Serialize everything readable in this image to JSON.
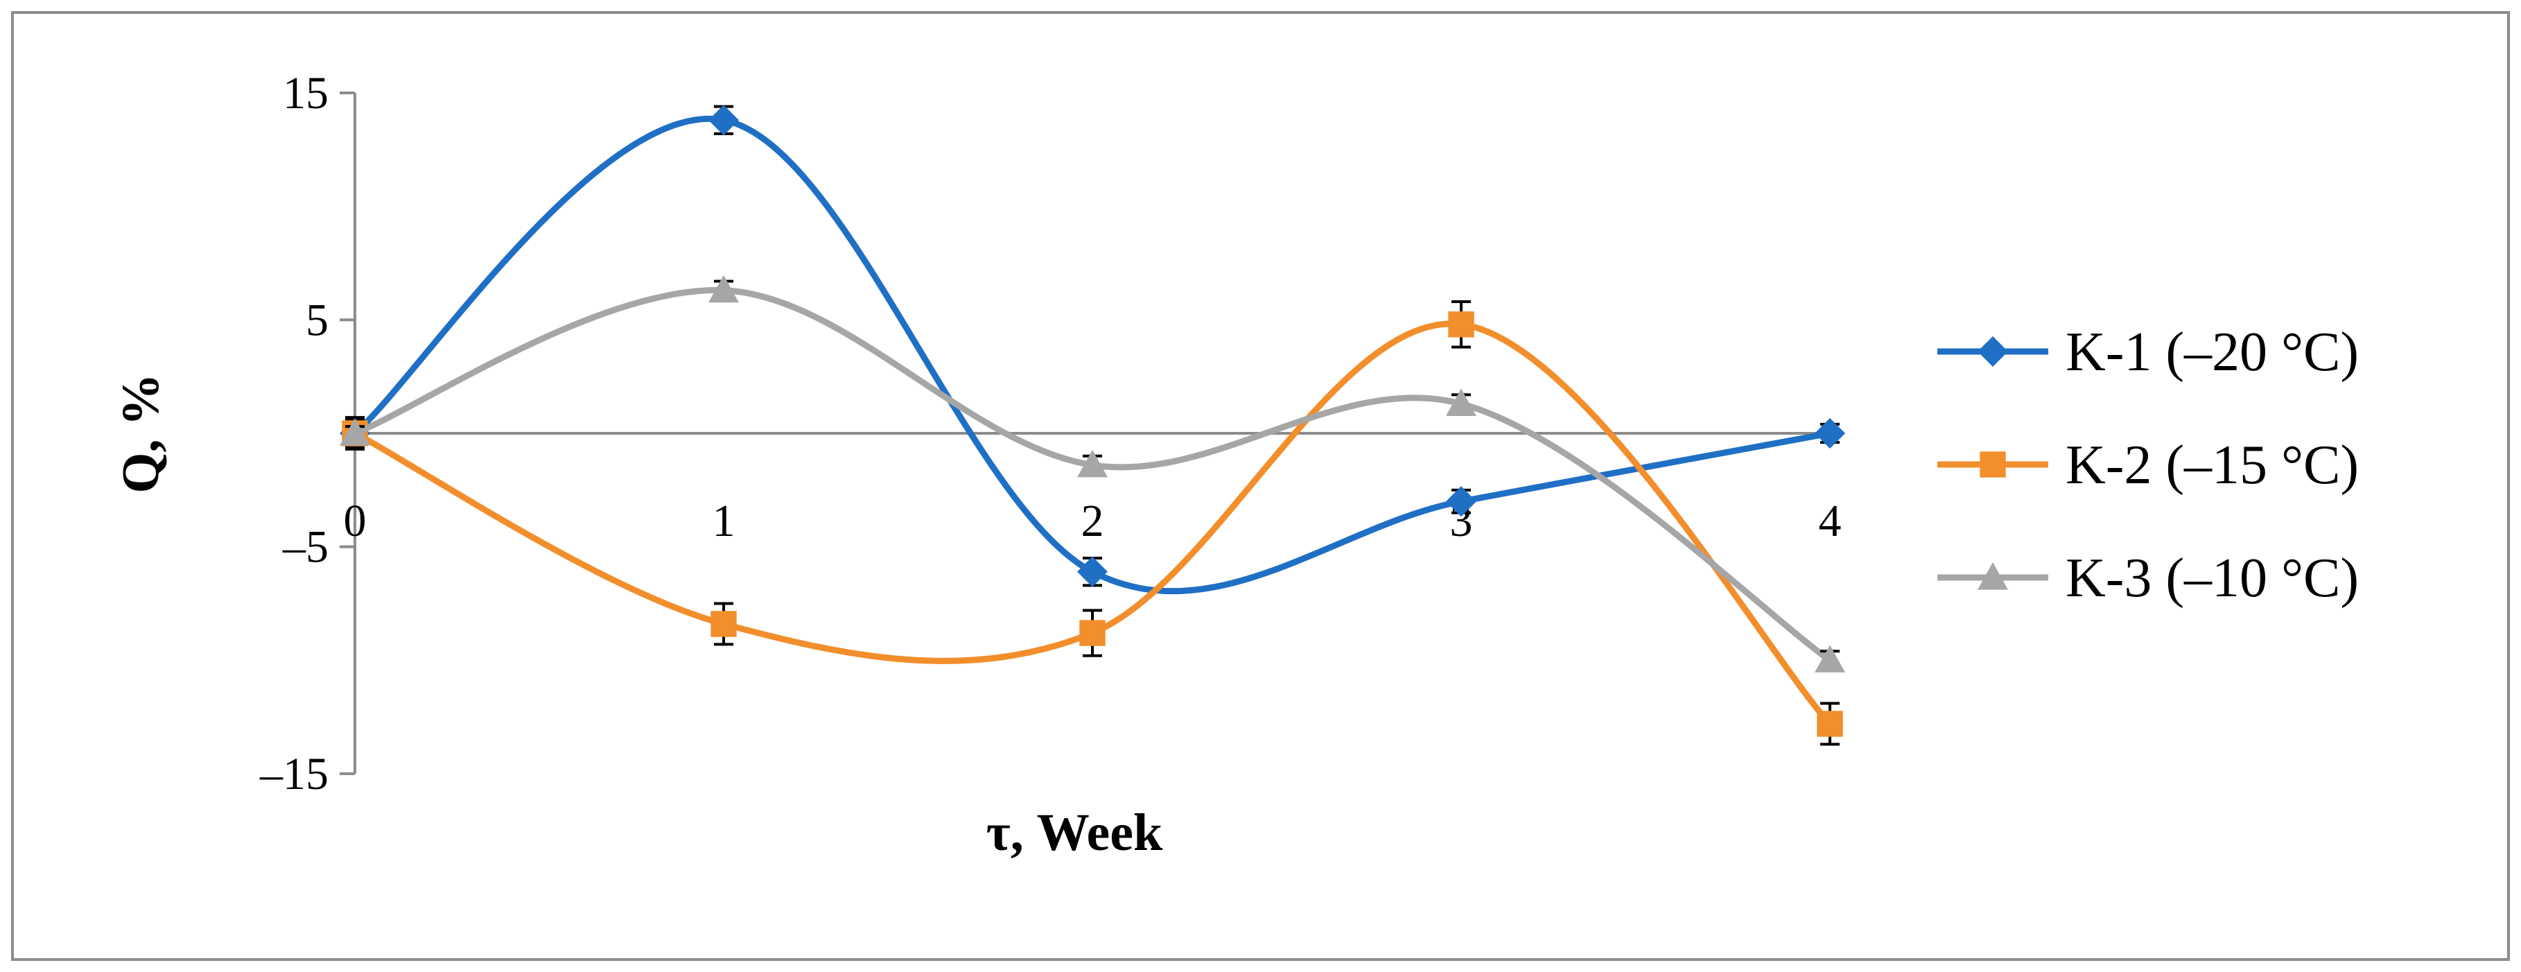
{
  "chart_data": {
    "type": "line",
    "smoothed": true,
    "xlabel": "τ, Week",
    "ylabel": "Q, %",
    "x": [
      0,
      1,
      2,
      3,
      4
    ],
    "x_tick_labels": [
      "0",
      "1",
      "2",
      "3",
      "4"
    ],
    "y_tick_labels": [
      "15",
      "5",
      "–5",
      "–15"
    ],
    "y_ticks": [
      15,
      5,
      -5,
      -15
    ],
    "ylim": [
      -15,
      15
    ],
    "grid": false,
    "legend_position": "right",
    "series": [
      {
        "name": "K-1 (–20 °C)",
        "color": "#1f6fc5",
        "marker": "diamond",
        "values": [
          0,
          13.8,
          -6.1,
          -3.0,
          0
        ],
        "errors": [
          0.6,
          0.6,
          0.6,
          0.5,
          0.4
        ]
      },
      {
        "name": "K-2 (–15 °C)",
        "color": "#f28e2b",
        "marker": "square",
        "values": [
          0,
          -8.4,
          -8.8,
          4.8,
          -12.8
        ],
        "errors": [
          0.7,
          0.9,
          1.0,
          1.0,
          0.9
        ]
      },
      {
        "name": "K-3 (–10 °C)",
        "color": "#a6a6a6",
        "marker": "triangle",
        "values": [
          0,
          6.3,
          -1.4,
          1.3,
          -10.0
        ],
        "errors": [
          0.3,
          0.4,
          0.4,
          0.4,
          0.4
        ]
      }
    ]
  }
}
